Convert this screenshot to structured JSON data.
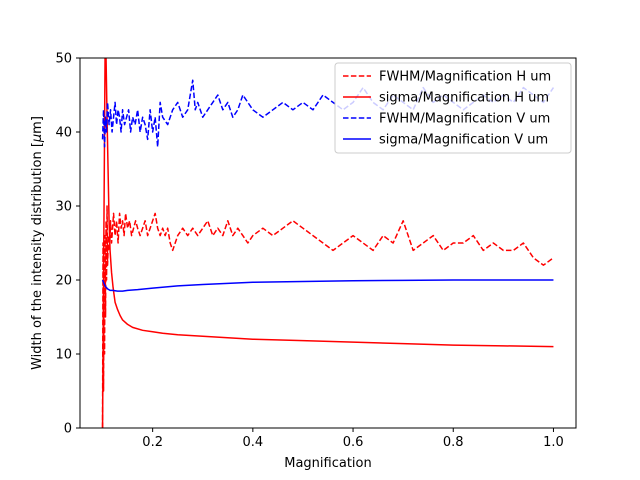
{
  "chart_data": {
    "type": "line",
    "xlabel": "Magnification",
    "ylabel_prefix": "Width of the intensity distribution [",
    "ylabel_mu": "μ",
    "ylabel_suffix": "m]",
    "xlim": [
      0.055,
      1.045
    ],
    "ylim": [
      0,
      50
    ],
    "xticks": [
      0.2,
      0.4,
      0.6,
      0.8,
      1.0
    ],
    "xtick_labels": [
      "0.2",
      "0.4",
      "0.6",
      "0.8",
      "1.0"
    ],
    "yticks": [
      0,
      10,
      20,
      30,
      40,
      50
    ],
    "ytick_labels": [
      "0",
      "10",
      "20",
      "30",
      "40",
      "50"
    ],
    "grid": false,
    "legend_position": "upper right",
    "series": [
      {
        "name": "FWHM/Magnification H um",
        "color": "#ff0000",
        "dash": "dashed",
        "x": [
          0.1,
          0.101,
          0.102,
          0.103,
          0.104,
          0.105,
          0.106,
          0.107,
          0.108,
          0.109,
          0.11,
          0.112,
          0.114,
          0.116,
          0.118,
          0.12,
          0.122,
          0.125,
          0.128,
          0.131,
          0.134,
          0.137,
          0.14,
          0.143,
          0.146,
          0.15,
          0.154,
          0.158,
          0.162,
          0.166,
          0.17,
          0.175,
          0.18,
          0.185,
          0.19,
          0.195,
          0.2,
          0.205,
          0.21,
          0.215,
          0.22,
          0.225,
          0.23,
          0.235,
          0.24,
          0.25,
          0.26,
          0.27,
          0.28,
          0.29,
          0.3,
          0.31,
          0.32,
          0.33,
          0.34,
          0.35,
          0.36,
          0.37,
          0.38,
          0.39,
          0.4,
          0.42,
          0.44,
          0.46,
          0.48,
          0.5,
          0.52,
          0.54,
          0.56,
          0.58,
          0.6,
          0.62,
          0.64,
          0.66,
          0.68,
          0.7,
          0.72,
          0.74,
          0.76,
          0.78,
          0.8,
          0.82,
          0.84,
          0.86,
          0.88,
          0.9,
          0.92,
          0.94,
          0.96,
          0.98,
          1.0
        ],
        "y": [
          0,
          25,
          5,
          22,
          10,
          26,
          15,
          28,
          20,
          30,
          22,
          26,
          24,
          28,
          25,
          27,
          29,
          26,
          28,
          25,
          29,
          27,
          28,
          26,
          29,
          27,
          28,
          26,
          27,
          28,
          27,
          26,
          27,
          28,
          26,
          27,
          28,
          29,
          27,
          26,
          27,
          26,
          27,
          25,
          24,
          26,
          27,
          26,
          27,
          26,
          27,
          28,
          26,
          27,
          26,
          28,
          26,
          27,
          26,
          25,
          26,
          27,
          26,
          27,
          28,
          27,
          26,
          25,
          24,
          25,
          26,
          25,
          24,
          26,
          25,
          28,
          24,
          25,
          26,
          24,
          25,
          25,
          26,
          24,
          25,
          24,
          24,
          25,
          23,
          22,
          23
        ]
      },
      {
        "name": "sigma/Magnification H um",
        "color": "#ff0000",
        "dash": "solid",
        "x": [
          0.1,
          0.101,
          0.102,
          0.103,
          0.104,
          0.105,
          0.107,
          0.109,
          0.111,
          0.113,
          0.115,
          0.118,
          0.121,
          0.125,
          0.13,
          0.135,
          0.14,
          0.15,
          0.16,
          0.18,
          0.2,
          0.22,
          0.25,
          0.3,
          0.35,
          0.4,
          0.5,
          0.6,
          0.7,
          0.8,
          0.9,
          1.0
        ],
        "y": [
          0,
          10,
          20,
          30,
          40,
          50,
          50,
          42,
          35,
          28,
          24,
          21,
          19,
          17,
          16,
          15.2,
          14.6,
          14,
          13.6,
          13.2,
          13,
          12.8,
          12.6,
          12.4,
          12.2,
          12,
          11.8,
          11.6,
          11.4,
          11.2,
          11.1,
          11
        ]
      },
      {
        "name": "FWHM/Magnification V um",
        "color": "#0000ff",
        "dash": "dashed",
        "x": [
          0.1,
          0.102,
          0.104,
          0.106,
          0.108,
          0.11,
          0.113,
          0.116,
          0.119,
          0.122,
          0.125,
          0.128,
          0.131,
          0.134,
          0.137,
          0.14,
          0.144,
          0.148,
          0.152,
          0.156,
          0.16,
          0.165,
          0.17,
          0.175,
          0.18,
          0.185,
          0.19,
          0.195,
          0.2,
          0.205,
          0.21,
          0.215,
          0.22,
          0.23,
          0.24,
          0.25,
          0.26,
          0.27,
          0.28,
          0.285,
          0.29,
          0.3,
          0.31,
          0.32,
          0.33,
          0.34,
          0.35,
          0.36,
          0.37,
          0.38,
          0.39,
          0.4,
          0.42,
          0.44,
          0.46,
          0.48,
          0.5,
          0.52,
          0.54,
          0.56,
          0.58,
          0.6,
          0.62,
          0.64,
          0.66,
          0.68,
          0.7,
          0.72,
          0.74,
          0.76,
          0.78,
          0.8,
          0.82,
          0.84,
          0.86,
          0.88,
          0.9,
          0.92,
          0.94,
          0.96,
          0.98,
          1.0
        ],
        "y": [
          39,
          43,
          38,
          42,
          40,
          44,
          41,
          43,
          40,
          42,
          44,
          41,
          43,
          42,
          40,
          43,
          41,
          42,
          43,
          40,
          42,
          41,
          43,
          40,
          42,
          41,
          39,
          43,
          40,
          42,
          38,
          44,
          42,
          41,
          43,
          44,
          42,
          43,
          47,
          43,
          44,
          42,
          43,
          44,
          45,
          43,
          44,
          42,
          43,
          45,
          44,
          43,
          42,
          43,
          44,
          43,
          44,
          43,
          45,
          44,
          43,
          44,
          46,
          44,
          43,
          45,
          44,
          43,
          46,
          44,
          45,
          44,
          43,
          44,
          45,
          44,
          45,
          44,
          46,
          45,
          44,
          46
        ]
      },
      {
        "name": "sigma/Magnification V um",
        "color": "#0000ff",
        "dash": "solid",
        "x": [
          0.1,
          0.105,
          0.11,
          0.115,
          0.12,
          0.13,
          0.14,
          0.15,
          0.17,
          0.2,
          0.25,
          0.3,
          0.4,
          0.5,
          0.6,
          0.7,
          0.8,
          0.9,
          1.0
        ],
        "y": [
          20,
          19.2,
          18.8,
          18.6,
          18.6,
          18.5,
          18.5,
          18.6,
          18.7,
          18.9,
          19.2,
          19.4,
          19.7,
          19.8,
          19.9,
          19.95,
          20,
          20,
          20
        ]
      }
    ]
  }
}
